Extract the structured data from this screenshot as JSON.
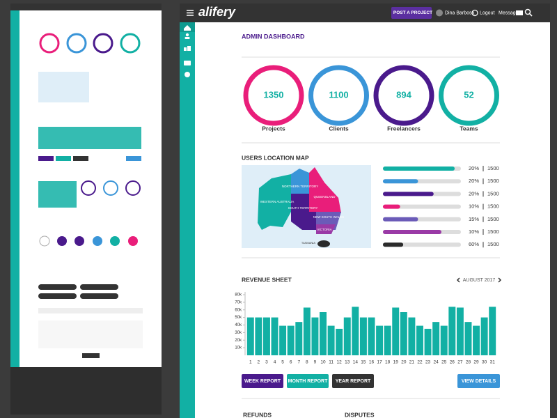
{
  "header": {
    "logo": "alifery",
    "post_button": "POST A PROJECT",
    "user": "Dina Barbosa",
    "logout": "Logout",
    "messages": "Messages"
  },
  "page_title": "ADMIN DASHBOARD",
  "stats": [
    {
      "value": "1350",
      "label": "Projects",
      "color": "#e91e7a"
    },
    {
      "value": "1100",
      "label": "Clients",
      "color": "#3a95d8"
    },
    {
      "value": "894",
      "label": "Freelancers",
      "color": "#4a1a8c"
    },
    {
      "value": "52",
      "label": "Teams",
      "color": "#12b0a4"
    }
  ],
  "location": {
    "title": "USERS LOCATION MAP",
    "regions": [
      "WESTERN AUSTRALIA",
      "NORTHERN TERRITORY",
      "QUEENSLAND",
      "SOUTH TERRITORY",
      "NEW SOUTH WALES",
      "VICTORIA",
      "TASMANIA"
    ],
    "rows": [
      {
        "percent": "20%",
        "count": "1500",
        "fill": 92,
        "color": "#12b0a4"
      },
      {
        "percent": "20%",
        "count": "1500",
        "fill": 45,
        "color": "#3a95d8"
      },
      {
        "percent": "20%",
        "count": "1500",
        "fill": 65,
        "color": "#4a1a8c"
      },
      {
        "percent": "10%",
        "count": "1500",
        "fill": 22,
        "color": "#e91e7a"
      },
      {
        "percent": "15%",
        "count": "1500",
        "fill": 45,
        "color": "#6b5bb8"
      },
      {
        "percent": "10%",
        "count": "1500",
        "fill": 75,
        "color": "#9a3aa6"
      },
      {
        "percent": "60%",
        "count": "1500",
        "fill": 26,
        "color": "#2b2b2b"
      }
    ]
  },
  "chart_data": {
    "type": "bar",
    "title": "REVENUE SHEET",
    "period": "AUGUST 2017",
    "categories": [
      "1",
      "2",
      "3",
      "4",
      "5",
      "6",
      "7",
      "8",
      "9",
      "10",
      "11",
      "12",
      "13",
      "14",
      "15",
      "16",
      "17",
      "18",
      "19",
      "20",
      "21",
      "22",
      "23",
      "24",
      "25",
      "26",
      "27",
      "28",
      "29",
      "30",
      "31"
    ],
    "values": [
      50,
      50,
      50,
      50,
      39,
      39,
      44,
      63,
      50,
      57,
      39,
      35,
      50,
      64,
      50,
      50,
      39,
      39,
      63,
      57,
      50,
      39,
      35,
      44,
      39,
      64,
      63,
      44,
      39,
      50,
      64
    ],
    "color": "#12b0a4",
    "ylim": [
      0,
      80
    ],
    "yticks": [
      {
        "value": 10,
        "label": "10k"
      },
      {
        "value": 20,
        "label": "20k"
      },
      {
        "value": 30,
        "label": "30k"
      },
      {
        "value": 40,
        "label": "40k"
      },
      {
        "value": 50,
        "label": "50k"
      },
      {
        "value": 60,
        "label": "60k"
      },
      {
        "value": 70,
        "label": "70k"
      },
      {
        "value": 80,
        "label": "80k"
      }
    ]
  },
  "buttons": {
    "week": "WEEK REPORT",
    "month": "MONTH REPORT",
    "year": "YEAR REPORT",
    "details": "VIEW DETAILS"
  },
  "next_sections": [
    "REFUNDS",
    "DISPUTES"
  ]
}
